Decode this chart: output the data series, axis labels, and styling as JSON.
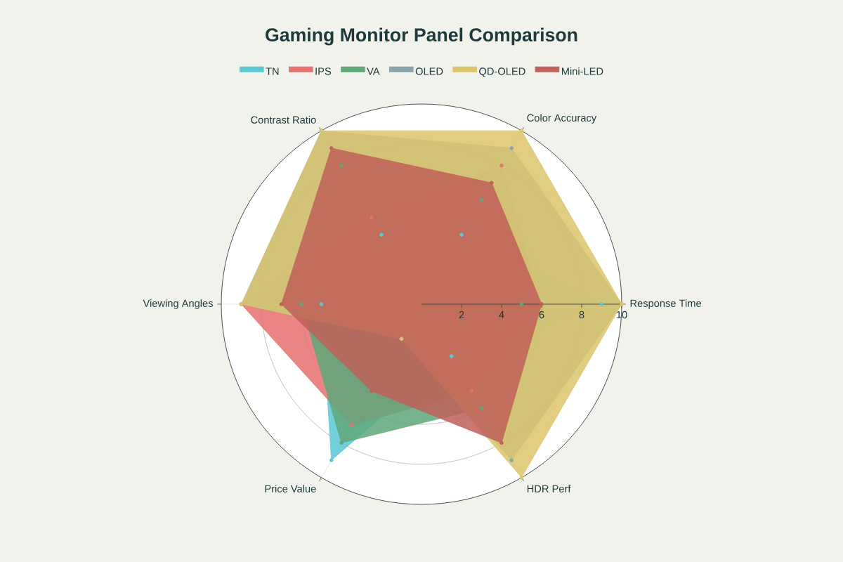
{
  "chart_data": {
    "type": "radar",
    "title": "Gaming Monitor Panel Comparison",
    "categories": [
      "Color Accuracy",
      "Response Time",
      "HDR Perf",
      "Price Value",
      "Viewing Angles",
      "Contrast Ratio"
    ],
    "series": [
      {
        "name": "TN",
        "color": "#5bc8d6",
        "values": [
          4,
          9,
          3,
          9,
          5,
          4
        ]
      },
      {
        "name": "IPS",
        "color": "#e8716f",
        "values": [
          8,
          6,
          5,
          7,
          9,
          5
        ]
      },
      {
        "name": "VA",
        "color": "#5fa87a",
        "values": [
          6,
          5,
          6,
          8,
          6,
          8
        ]
      },
      {
        "name": "OLED",
        "color": "#8aa4ab",
        "values": [
          9,
          10,
          9,
          2,
          9,
          10
        ]
      },
      {
        "name": "QD-OLED",
        "color": "#dcc66c",
        "values": [
          10,
          10,
          10,
          2,
          9,
          10
        ]
      },
      {
        "name": "Mini-LED",
        "color": "#c0615a",
        "values": [
          7,
          6,
          8,
          5,
          7,
          9
        ]
      }
    ],
    "ylim": [
      0,
      10
    ],
    "yticks": [
      2,
      4,
      6,
      8,
      10
    ],
    "grid": true,
    "legend": "top",
    "marker": "circle"
  }
}
